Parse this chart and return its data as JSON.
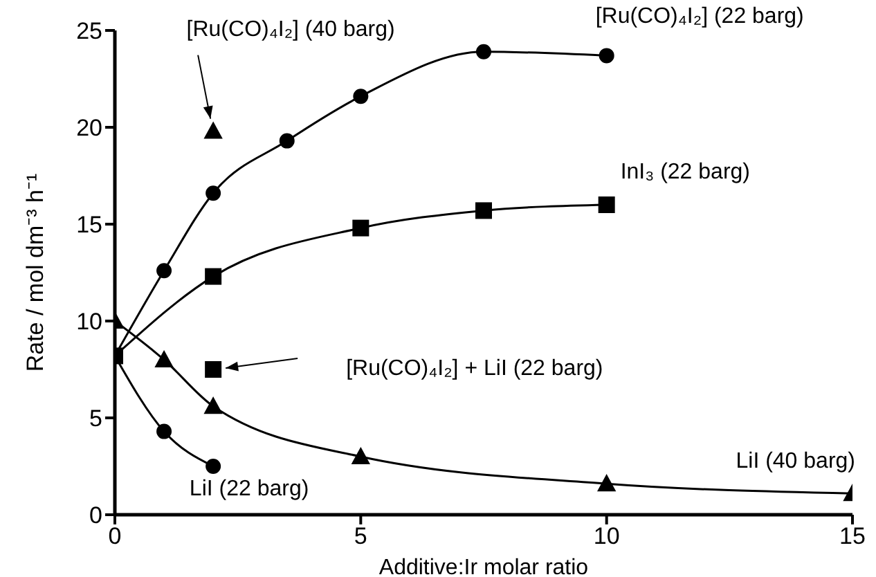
{
  "chart_data": {
    "type": "line",
    "xlabel": "Additive:Ir molar ratio",
    "ylabel": "Rate / mol dm⁻³ h⁻¹",
    "xlim": [
      0,
      15
    ],
    "xticks": [
      0,
      5,
      10,
      15
    ],
    "ylim": [
      0,
      25
    ],
    "yticks": [
      0,
      5,
      10,
      15,
      20,
      25
    ],
    "line_style": "solid",
    "series": [
      {
        "name": "[Ru(CO)₄I₂] (22 barg)",
        "marker": "circle",
        "color": "#000000",
        "x": [
          0,
          1,
          2,
          3.5,
          5,
          7.5,
          10
        ],
        "values": [
          8.2,
          12.6,
          16.6,
          19.3,
          21.6,
          23.9,
          23.7
        ]
      },
      {
        "name": "InI₃ (22 barg)",
        "marker": "square",
        "color": "#000000",
        "x": [
          0,
          2,
          5,
          7.5,
          10
        ],
        "values": [
          8.2,
          12.3,
          14.8,
          15.7,
          16.0
        ]
      },
      {
        "name": "[Ru(CO)₄I₂] (40 barg)",
        "type": "scatter",
        "marker": "triangle",
        "color": "#000000",
        "x": [
          2
        ],
        "values": [
          19.8
        ]
      },
      {
        "name": "[Ru(CO)₄I₂] + LiI (22 barg)",
        "type": "scatter",
        "marker": "square",
        "color": "#000000",
        "x": [
          2
        ],
        "values": [
          7.5
        ]
      },
      {
        "name": "LiI (40 barg)",
        "marker": "triangle",
        "color": "#000000",
        "x": [
          0,
          1,
          2,
          5,
          10,
          15
        ],
        "values": [
          10,
          8.0,
          5.6,
          3.0,
          1.6,
          1.1
        ]
      },
      {
        "name": "LiI (22 barg)",
        "marker": "circle",
        "color": "#000000",
        "x": [
          0,
          1,
          2
        ],
        "values": [
          8.2,
          4.3,
          2.5
        ]
      }
    ]
  }
}
